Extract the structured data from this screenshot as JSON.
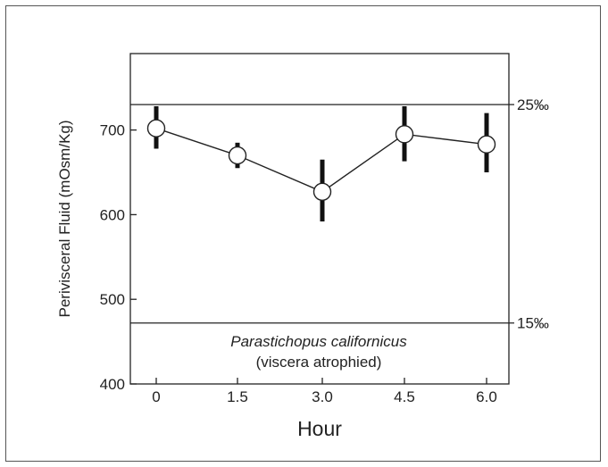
{
  "chart_data": {
    "type": "line",
    "xlabel": "Hour",
    "ylabel": "Perivisceral Fluid (mOsm/Kg)",
    "categories": [
      "0",
      "1.5",
      "3.0",
      "4.5",
      "6.0"
    ],
    "x": [
      0,
      1.5,
      3.0,
      4.5,
      6.0
    ],
    "series": [
      {
        "values": [
          702,
          670,
          627,
          695,
          683
        ],
        "error_low": [
          678,
          655,
          592,
          663,
          650
        ],
        "error_high": [
          728,
          685,
          665,
          728,
          720
        ]
      }
    ],
    "ylim": [
      400,
      800
    ],
    "yticks": [
      400,
      500,
      600,
      700
    ],
    "ytick_labels": [
      "400",
      "500",
      "600",
      "700"
    ],
    "reference_lines": [
      {
        "value": 730,
        "label": "25‰"
      },
      {
        "value": 472,
        "label": "15‰"
      }
    ],
    "annotations": {
      "species": "Parastichopus californicus",
      "condition": "(viscera atrophied)"
    },
    "grid": false,
    "colors": {
      "line": "#222222",
      "marker_fill": "#ffffff",
      "error_bar": "#111111"
    }
  }
}
